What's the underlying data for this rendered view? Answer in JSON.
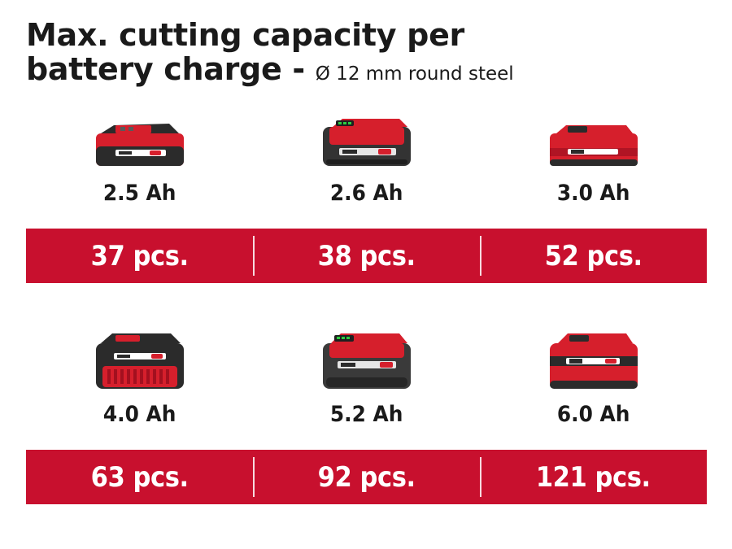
{
  "title": {
    "line1": "Max. cutting capacity per",
    "line2": "battery charge - ",
    "subtitle": "Ø 12 mm round steel"
  },
  "colors": {
    "accent": "#c8102e",
    "battery_red": "#d61f2c",
    "battery_dark": "#2b2b2b",
    "text": "#1a1a1a"
  },
  "batteries_row1": [
    {
      "capacity": "2.5 Ah",
      "pieces": "37 pcs.",
      "icon": "battery-2-5ah-icon"
    },
    {
      "capacity": "2.6 Ah",
      "pieces": "38 pcs.",
      "icon": "battery-2-6ah-icon"
    },
    {
      "capacity": "3.0 Ah",
      "pieces": "52 pcs.",
      "icon": "battery-3-0ah-icon"
    }
  ],
  "batteries_row2": [
    {
      "capacity": "4.0 Ah",
      "pieces": "63 pcs.",
      "icon": "battery-4-0ah-icon"
    },
    {
      "capacity": "5.2 Ah",
      "pieces": "92 pcs.",
      "icon": "battery-5-2ah-icon"
    },
    {
      "capacity": "6.0 Ah",
      "pieces": "121 pcs.",
      "icon": "battery-6-0ah-icon"
    }
  ]
}
